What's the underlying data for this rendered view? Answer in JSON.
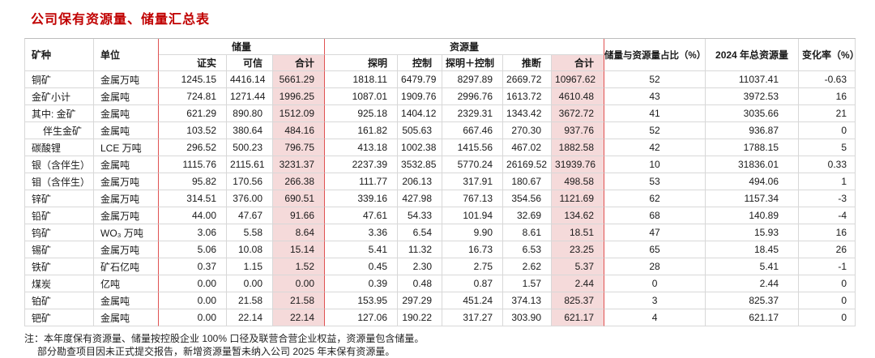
{
  "title": "公司保有资源量、储量汇总表",
  "table": {
    "headers": {
      "mineral": "矿种",
      "unit": "单位",
      "reserves_group": "储量",
      "resources_group": "资源量",
      "ratio": "储量与资源量占比（%）",
      "total_2024": "2024 年总资源量",
      "change_rate": "变化率（%）"
    },
    "sub_headers": {
      "proven": "证实",
      "probable": "可信",
      "reserves_total": "合计",
      "measured": "探明",
      "indicated": "控制",
      "measured_plus_indicated": "探明＋控制",
      "inferred": "推断",
      "resources_total": "合计"
    },
    "rows": [
      {
        "mineral": "铜矿",
        "unit": "金属万吨",
        "indent": false,
        "values": [
          "1245.15",
          "4416.14",
          "5661.29",
          "1818.11",
          "6479.79",
          "8297.89",
          "2669.72",
          "10967.62",
          "52",
          "11037.41",
          "-0.63"
        ]
      },
      {
        "mineral": "金矿小计",
        "unit": "金属吨",
        "indent": false,
        "values": [
          "724.81",
          "1271.44",
          "1996.25",
          "1087.01",
          "1909.76",
          "2996.76",
          "1613.72",
          "4610.48",
          "43",
          "3972.53",
          "16"
        ]
      },
      {
        "mineral": "其中: 金矿",
        "unit": "金属吨",
        "indent": false,
        "values": [
          "621.29",
          "890.80",
          "1512.09",
          "925.18",
          "1404.12",
          "2329.31",
          "1343.42",
          "3672.72",
          "41",
          "3035.66",
          "21"
        ]
      },
      {
        "mineral": "伴生金矿",
        "unit": "金属吨",
        "indent": true,
        "values": [
          "103.52",
          "380.64",
          "484.16",
          "161.82",
          "505.63",
          "667.46",
          "270.30",
          "937.76",
          "52",
          "936.87",
          "0"
        ]
      },
      {
        "mineral": "碳酸锂",
        "unit": "LCE 万吨",
        "indent": false,
        "values": [
          "296.52",
          "500.23",
          "796.75",
          "413.18",
          "1002.38",
          "1415.56",
          "467.02",
          "1882.58",
          "42",
          "1788.15",
          "5"
        ]
      },
      {
        "mineral": "银（含伴生）",
        "unit": "金属吨",
        "indent": false,
        "values": [
          "1115.76",
          "2115.61",
          "3231.37",
          "2237.39",
          "3532.85",
          "5770.24",
          "26169.52",
          "31939.76",
          "10",
          "31836.01",
          "0.33"
        ]
      },
      {
        "mineral": "钼（含伴生）",
        "unit": "金属万吨",
        "indent": false,
        "values": [
          "95.82",
          "170.56",
          "266.38",
          "111.77",
          "206.13",
          "317.91",
          "180.67",
          "498.58",
          "53",
          "494.06",
          "1"
        ]
      },
      {
        "mineral": "锌矿",
        "unit": "金属万吨",
        "indent": false,
        "values": [
          "314.51",
          "376.00",
          "690.51",
          "339.16",
          "427.98",
          "767.13",
          "354.56",
          "1121.69",
          "62",
          "1157.34",
          "-3"
        ]
      },
      {
        "mineral": "铅矿",
        "unit": "金属万吨",
        "indent": false,
        "values": [
          "44.00",
          "47.67",
          "91.66",
          "47.61",
          "54.33",
          "101.94",
          "32.69",
          "134.62",
          "68",
          "140.89",
          "-4"
        ]
      },
      {
        "mineral": "钨矿",
        "unit": "WO₃ 万吨",
        "indent": false,
        "values": [
          "3.06",
          "5.58",
          "8.64",
          "3.36",
          "6.54",
          "9.90",
          "8.61",
          "18.51",
          "47",
          "15.93",
          "16"
        ]
      },
      {
        "mineral": "锡矿",
        "unit": "金属万吨",
        "indent": false,
        "values": [
          "5.06",
          "10.08",
          "15.14",
          "5.41",
          "11.32",
          "16.73",
          "6.53",
          "23.25",
          "65",
          "18.45",
          "26"
        ]
      },
      {
        "mineral": "铁矿",
        "unit": "矿石亿吨",
        "indent": false,
        "values": [
          "0.37",
          "1.15",
          "1.52",
          "0.45",
          "2.30",
          "2.75",
          "2.62",
          "5.37",
          "28",
          "5.41",
          "-1"
        ]
      },
      {
        "mineral": "煤炭",
        "unit": "亿吨",
        "indent": false,
        "values": [
          "0.00",
          "0.00",
          "0.00",
          "0.39",
          "0.48",
          "0.87",
          "1.57",
          "2.44",
          "0",
          "2.44",
          "0"
        ]
      },
      {
        "mineral": "铂矿",
        "unit": "金属吨",
        "indent": false,
        "values": [
          "0.00",
          "21.58",
          "21.58",
          "153.95",
          "297.29",
          "451.24",
          "374.13",
          "825.37",
          "3",
          "825.37",
          "0"
        ]
      },
      {
        "mineral": "钯矿",
        "unit": "金属吨",
        "indent": false,
        "values": [
          "0.00",
          "22.14",
          "22.14",
          "127.06",
          "190.22",
          "317.27",
          "303.90",
          "621.17",
          "4",
          "621.17",
          "0"
        ]
      }
    ]
  },
  "notes": [
    "注：本年度保有资源量、储量按控股企业 100% 口径及联营合营企业权益，资源量包含储量。",
    "部分勘查项目因未正式提交报告，新增资源量暂未纳入公司 2025 年末保有资源量。"
  ],
  "colors": {
    "title_red": "#c00000",
    "divider_red": "#e05252",
    "total_column_pink": "#f5dada"
  }
}
